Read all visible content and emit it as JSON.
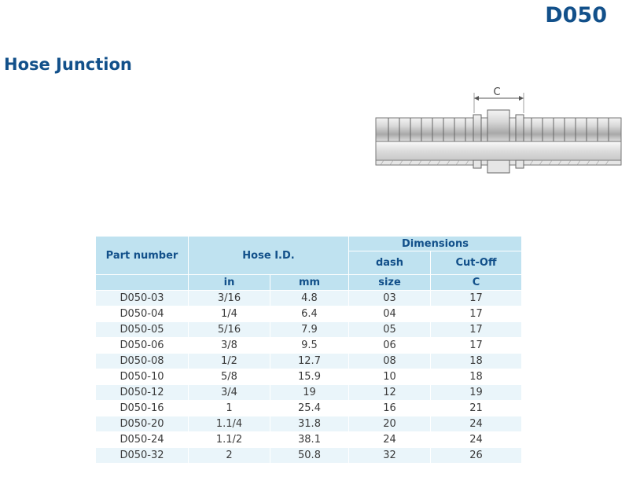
{
  "header": {
    "code": "D050",
    "title": "Hose Junction"
  },
  "drawing": {
    "dimension_label": "C"
  },
  "table": {
    "col_part": "Part number",
    "col_hose": "Hose I.D.",
    "col_dimensions": "Dimensions",
    "col_dash": "dash",
    "col_cutoff": "Cut-Off",
    "sub_in": "in",
    "sub_mm": "mm",
    "sub_size": "size",
    "sub_c": "C",
    "rows": [
      {
        "part": "D050-03",
        "in": "3/16",
        "mm": "4.8",
        "size": "03",
        "c": "17"
      },
      {
        "part": "D050-04",
        "in": "1/4",
        "mm": "6.4",
        "size": "04",
        "c": "17"
      },
      {
        "part": "D050-05",
        "in": "5/16",
        "mm": "7.9",
        "size": "05",
        "c": "17"
      },
      {
        "part": "D050-06",
        "in": "3/8",
        "mm": "9.5",
        "size": "06",
        "c": "17"
      },
      {
        "part": "D050-08",
        "in": "1/2",
        "mm": "12.7",
        "size": "08",
        "c": "18"
      },
      {
        "part": "D050-10",
        "in": "5/8",
        "mm": "15.9",
        "size": "10",
        "c": "18"
      },
      {
        "part": "D050-12",
        "in": "3/4",
        "mm": "19",
        "size": "12",
        "c": "19"
      },
      {
        "part": "D050-16",
        "in": "1",
        "mm": "25.4",
        "size": "16",
        "c": "21"
      },
      {
        "part": "D050-20",
        "in": "1.1/4",
        "mm": "31.8",
        "size": "20",
        "c": "24"
      },
      {
        "part": "D050-24",
        "in": "1.1/2",
        "mm": "38.1",
        "size": "24",
        "c": "24"
      },
      {
        "part": "D050-32",
        "in": "2",
        "mm": "50.8",
        "size": "32",
        "c": "26"
      }
    ]
  }
}
